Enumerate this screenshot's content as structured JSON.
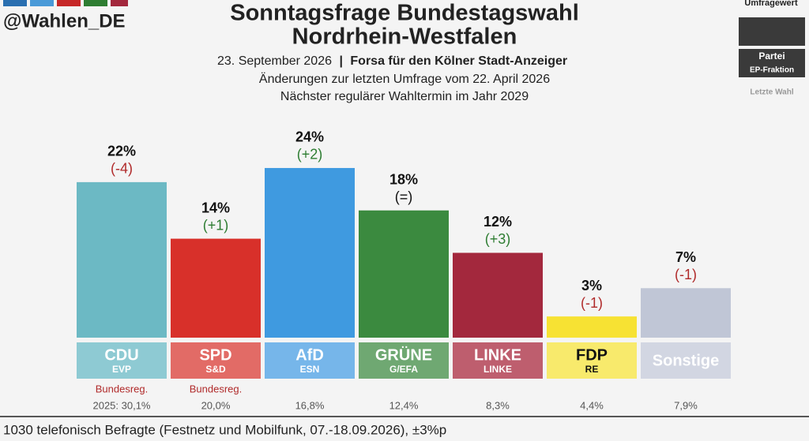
{
  "header": {
    "handle": "@Wahlen_DE"
  },
  "legend_box": {
    "poll_label": "Umfragewert",
    "party_label": "Partei",
    "fraction_label": "EP-Fraktion",
    "last_label": "Letzte Wahl"
  },
  "chart_data": {
    "type": "bar",
    "title": [
      "Sonntagsfrage Bundestagswahl",
      "Nordrhein-Westfalen"
    ],
    "date": "23. September 2026",
    "separator": "|",
    "source": "Forsa für den Kölner Stadt-Anzeiger",
    "subtitle": [
      "Änderungen zur letzten Umfrage vom 22. April 2026",
      "Nächster regulärer Wahltermin im Jahr 2029"
    ],
    "categories": [
      "CDU",
      "SPD",
      "AfD",
      "GRÜNE",
      "LINKE",
      "FDP",
      "Sonstige"
    ],
    "fractions": [
      "EVP",
      "S&D",
      "ESN",
      "G/EFA",
      "LINKE",
      "RE",
      null
    ],
    "values": [
      22,
      14,
      24,
      18,
      12,
      3,
      7
    ],
    "value_labels": [
      "22%",
      "14%",
      "24%",
      "18%",
      "12%",
      "3%",
      "7%"
    ],
    "changes": [
      "(-4)",
      "(+1)",
      "(+2)",
      "(=)",
      "(+3)",
      "(-1)",
      "(-1)"
    ],
    "change_colors": [
      "#b02a2a",
      "#2e7d32",
      "#2e7d32",
      "#111111",
      "#2e7d32",
      "#b02a2a",
      "#b02a2a"
    ],
    "colors": [
      "#6cb9c4",
      "#d8302a",
      "#3f9ae0",
      "#3b8a3f",
      "#a3283d",
      "#f7e233",
      "#c0c6d6"
    ],
    "label_colors": [
      "#8ecad3",
      "#e26b66",
      "#76b6ea",
      "#6fa872",
      "#be5e6e",
      "#f8ea6c",
      "#d2d6e2"
    ],
    "label_text_colors": [
      "#ffffff",
      "#ffffff",
      "#ffffff",
      "#ffffff",
      "#ffffff",
      "#111111",
      "#ffffff"
    ],
    "government": [
      "Bundesreg.",
      "Bundesreg.",
      null,
      null,
      null,
      null,
      null
    ],
    "last_election": [
      "2025: 30,1%",
      "20,0%",
      "16,8%",
      "12,4%",
      "8,3%",
      "4,4%",
      "7,9%"
    ],
    "ylim": [
      0,
      25
    ],
    "footnote": "1030 telefonisch Befragte (Festnetz und Mobilfunk, 07.-18.09.2026), ±3%p"
  }
}
